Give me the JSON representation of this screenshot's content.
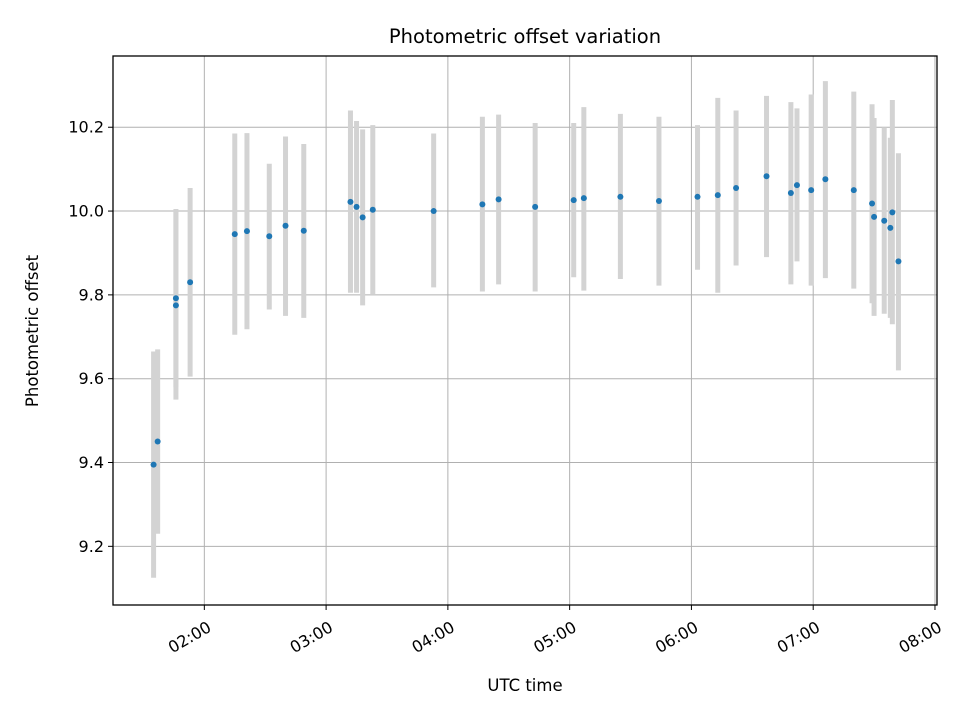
{
  "chart_data": {
    "type": "scatter",
    "title": "Photometric offset variation",
    "xlabel": "UTC time",
    "ylabel": "Photometric offset",
    "x_ticks": [
      "02:00",
      "03:00",
      "04:00",
      "05:00",
      "06:00",
      "07:00",
      "08:00"
    ],
    "y_ticks": [
      "9.2",
      "9.4",
      "9.6",
      "9.8",
      "10.0",
      "10.2"
    ],
    "xlim": [
      "01:15",
      "08:01"
    ],
    "ylim": [
      9.06,
      10.37
    ],
    "grid": true,
    "series_color": "#1f77b4",
    "errorbar_color": "#d3d3d3",
    "points": [
      {
        "x": "01:35",
        "y": 9.395,
        "lo": 9.125,
        "hi": 9.665
      },
      {
        "x": "01:37",
        "y": 9.45,
        "lo": 9.23,
        "hi": 9.67
      },
      {
        "x": "01:46",
        "y": 9.792,
        "lo": 9.58,
        "hi": 10.005
      },
      {
        "x": "01:46",
        "y": 9.775,
        "lo": 9.55,
        "hi": 10.0
      },
      {
        "x": "01:53",
        "y": 9.83,
        "lo": 9.605,
        "hi": 10.055
      },
      {
        "x": "02:15",
        "y": 9.945,
        "lo": 9.705,
        "hi": 10.185
      },
      {
        "x": "02:21",
        "y": 9.952,
        "lo": 9.718,
        "hi": 10.186
      },
      {
        "x": "02:32",
        "y": 9.94,
        "lo": 9.765,
        "hi": 10.113
      },
      {
        "x": "02:40",
        "y": 9.965,
        "lo": 9.75,
        "hi": 10.178
      },
      {
        "x": "02:49",
        "y": 9.953,
        "lo": 9.745,
        "hi": 10.16
      },
      {
        "x": "03:12",
        "y": 10.022,
        "lo": 9.805,
        "hi": 10.24
      },
      {
        "x": "03:15",
        "y": 10.01,
        "lo": 9.805,
        "hi": 10.215
      },
      {
        "x": "03:18",
        "y": 9.985,
        "lo": 9.775,
        "hi": 10.195
      },
      {
        "x": "03:23",
        "y": 10.003,
        "lo": 9.8,
        "hi": 10.205
      },
      {
        "x": "03:53",
        "y": 10.0,
        "lo": 9.818,
        "hi": 10.185
      },
      {
        "x": "04:17",
        "y": 10.016,
        "lo": 9.808,
        "hi": 10.225
      },
      {
        "x": "04:25",
        "y": 10.028,
        "lo": 9.825,
        "hi": 10.23
      },
      {
        "x": "04:43",
        "y": 10.01,
        "lo": 9.808,
        "hi": 10.21
      },
      {
        "x": "05:02",
        "y": 10.026,
        "lo": 9.842,
        "hi": 10.21
      },
      {
        "x": "05:07",
        "y": 10.031,
        "lo": 9.81,
        "hi": 10.248
      },
      {
        "x": "05:25",
        "y": 10.034,
        "lo": 9.838,
        "hi": 10.232
      },
      {
        "x": "05:44",
        "y": 10.024,
        "lo": 9.822,
        "hi": 10.225
      },
      {
        "x": "06:03",
        "y": 10.034,
        "lo": 9.86,
        "hi": 10.205
      },
      {
        "x": "06:13",
        "y": 10.038,
        "lo": 9.805,
        "hi": 10.27
      },
      {
        "x": "06:22",
        "y": 10.055,
        "lo": 9.87,
        "hi": 10.24
      },
      {
        "x": "06:37",
        "y": 10.083,
        "lo": 9.89,
        "hi": 10.275
      },
      {
        "x": "06:49",
        "y": 10.043,
        "lo": 9.825,
        "hi": 10.26
      },
      {
        "x": "06:52",
        "y": 10.062,
        "lo": 9.88,
        "hi": 10.245
      },
      {
        "x": "06:59",
        "y": 10.05,
        "lo": 9.822,
        "hi": 10.278
      },
      {
        "x": "07:06",
        "y": 10.076,
        "lo": 9.84,
        "hi": 10.31
      },
      {
        "x": "07:20",
        "y": 10.05,
        "lo": 9.815,
        "hi": 10.285
      },
      {
        "x": "07:29",
        "y": 10.018,
        "lo": 9.78,
        "hi": 10.255
      },
      {
        "x": "07:30",
        "y": 9.986,
        "lo": 9.75,
        "hi": 10.222
      },
      {
        "x": "07:35",
        "y": 9.977,
        "lo": 9.755,
        "hi": 10.2
      },
      {
        "x": "07:38",
        "y": 9.96,
        "lo": 9.745,
        "hi": 10.175
      },
      {
        "x": "07:39",
        "y": 9.997,
        "lo": 9.73,
        "hi": 10.265
      },
      {
        "x": "07:42",
        "y": 9.88,
        "lo": 9.62,
        "hi": 10.138
      }
    ]
  }
}
